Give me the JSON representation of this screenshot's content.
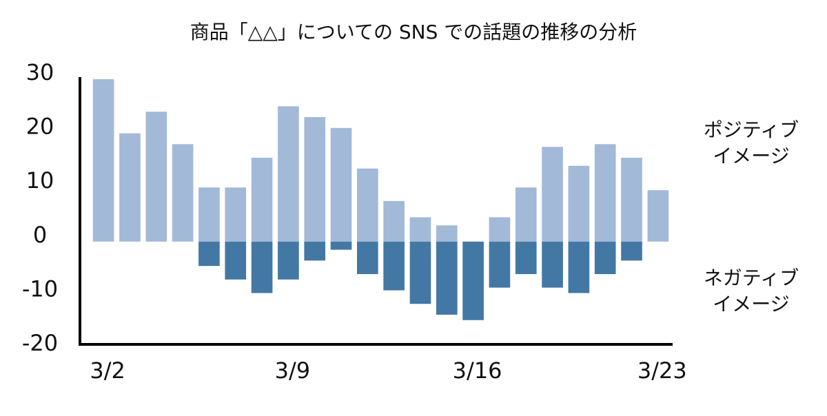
{
  "chart_data": {
    "type": "bar",
    "stacked": true,
    "title": "商品「△△」についての SNS での話題の推移の分析",
    "categories": [
      "3/2",
      null,
      null,
      null,
      null,
      null,
      null,
      "3/9",
      null,
      null,
      null,
      null,
      null,
      null,
      "3/16",
      null,
      null,
      null,
      null,
      null,
      null,
      "3/23"
    ],
    "series": [
      {
        "name": "ポジティブ\nイメージ",
        "color": "#a3b9d8",
        "values": [
          30,
          20,
          24,
          18,
          10,
          10,
          15.5,
          25,
          23,
          21,
          13.5,
          7.5,
          4.5,
          3,
          0,
          4.5,
          10,
          17.5,
          14,
          18,
          15.5,
          9.5
        ]
      },
      {
        "name": "ネガティブ\nイメージ",
        "color": "#4478a4",
        "values": [
          0,
          0,
          0,
          0,
          -4.5,
          -7,
          -9.5,
          -7,
          -3.5,
          -1.5,
          -6,
          -9,
          -11.5,
          -13.5,
          -14.5,
          -8.5,
          -6,
          -8.5,
          -9.5,
          -6,
          -3.5,
          0
        ]
      }
    ],
    "ylim": [
      -20,
      30
    ],
    "yticks": [
      -20,
      -10,
      0,
      10,
      20,
      30
    ],
    "grid": false
  }
}
